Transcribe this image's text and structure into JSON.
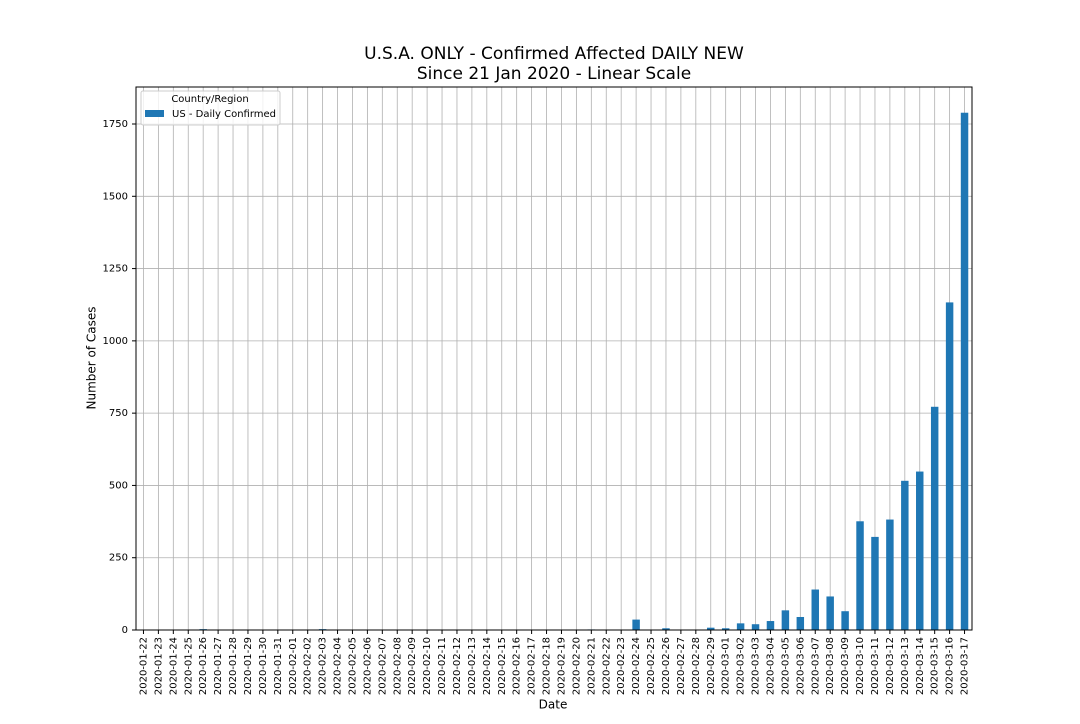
{
  "chart_data": {
    "type": "bar",
    "title": "U.S.A. ONLY - Confirmed Affected DAILY NEW",
    "subtitle": "Since 21 Jan 2020 - Linear Scale",
    "x_label": "Date",
    "y_label": "Number of Cases",
    "legend_title": "Country/Region",
    "legend": "upper left",
    "categories": [
      "2020-01-22",
      "2020-01-23",
      "2020-01-24",
      "2020-01-25",
      "2020-01-26",
      "2020-01-27",
      "2020-01-28",
      "2020-01-29",
      "2020-01-30",
      "2020-01-31",
      "2020-02-01",
      "2020-02-02",
      "2020-02-03",
      "2020-02-04",
      "2020-02-05",
      "2020-02-06",
      "2020-02-07",
      "2020-02-08",
      "2020-02-09",
      "2020-02-10",
      "2020-02-11",
      "2020-02-12",
      "2020-02-13",
      "2020-02-14",
      "2020-02-15",
      "2020-02-16",
      "2020-02-17",
      "2020-02-18",
      "2020-02-19",
      "2020-02-20",
      "2020-02-21",
      "2020-02-22",
      "2020-02-23",
      "2020-02-24",
      "2020-02-25",
      "2020-02-26",
      "2020-02-27",
      "2020-02-28",
      "2020-02-29",
      "2020-03-01",
      "2020-03-02",
      "2020-03-03",
      "2020-03-04",
      "2020-03-05",
      "2020-03-06",
      "2020-03-07",
      "2020-03-08",
      "2020-03-09",
      "2020-03-10",
      "2020-03-11",
      "2020-03-12",
      "2020-03-13",
      "2020-03-14",
      "2020-03-15",
      "2020-03-16",
      "2020-03-17"
    ],
    "series": [
      {
        "name": "US - Daily Confirmed",
        "color": "#1f77b4",
        "values": [
          0,
          0,
          1,
          0,
          3,
          0,
          0,
          0,
          0,
          1,
          1,
          0,
          3,
          0,
          1,
          0,
          0,
          0,
          0,
          0,
          1,
          0,
          1,
          0,
          0,
          0,
          0,
          0,
          0,
          0,
          2,
          0,
          0,
          36,
          0,
          6,
          1,
          1,
          8,
          6,
          23,
          20,
          31,
          68,
          45,
          140,
          116,
          65,
          376,
          322,
          382,
          516,
          548,
          772,
          1133,
          1789
        ]
      }
    ],
    "ylim": [
      0,
      1878
    ],
    "yticks": [
      0,
      250,
      500,
      750,
      1000,
      1250,
      1500,
      1750
    ],
    "grid": true
  }
}
